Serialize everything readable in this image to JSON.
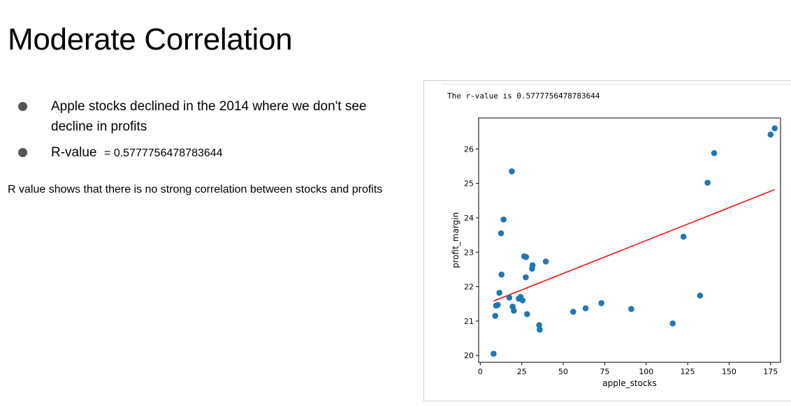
{
  "slide": {
    "title": "Moderate Correlation",
    "bullets": [
      {
        "text": "Apple stocks declined in the 2014 where we don't see decline in profits"
      },
      {
        "label": "R-value",
        "value": "= 0.5777756478783644"
      }
    ],
    "note": "R value shows that there is no strong correlation between stocks and profits"
  },
  "output": {
    "r_text": "The r-value is 0.5777756478783644"
  },
  "chart_data": {
    "type": "scatter",
    "xlabel": "apple_stocks",
    "ylabel": "profit_margin",
    "xlim": [
      -1,
      181
    ],
    "ylim": [
      19.8,
      26.9
    ],
    "xticks": [
      0,
      25,
      50,
      75,
      100,
      125,
      150,
      175
    ],
    "yticks": [
      20,
      21,
      22,
      23,
      24,
      25,
      26
    ],
    "point_color": "#1f77b4",
    "line_color": "#ff0000",
    "points": [
      [
        8,
        20.05
      ],
      [
        9,
        21.15
      ],
      [
        9.5,
        21.45
      ],
      [
        10.5,
        21.47
      ],
      [
        11.5,
        21.82
      ],
      [
        12.5,
        23.55
      ],
      [
        12.8,
        22.35
      ],
      [
        14,
        23.95
      ],
      [
        17.5,
        21.68
      ],
      [
        19,
        25.35
      ],
      [
        19.5,
        21.42
      ],
      [
        20.2,
        21.3
      ],
      [
        23.2,
        21.65
      ],
      [
        24.3,
        21.7
      ],
      [
        25.5,
        21.6
      ],
      [
        26.5,
        22.88
      ],
      [
        27.4,
        22.27
      ],
      [
        27.6,
        22.86
      ],
      [
        28.2,
        21.2
      ],
      [
        31.2,
        22.52
      ],
      [
        31.5,
        22.62
      ],
      [
        35.5,
        20.88
      ],
      [
        35.8,
        20.75
      ],
      [
        39.5,
        22.73
      ],
      [
        56,
        21.27
      ],
      [
        63.5,
        21.37
      ],
      [
        73,
        21.52
      ],
      [
        91,
        21.35
      ],
      [
        116,
        20.93
      ],
      [
        122.5,
        23.45
      ],
      [
        132.5,
        21.74
      ],
      [
        137,
        25.02
      ],
      [
        141,
        25.88
      ],
      [
        175,
        26.42
      ],
      [
        177.5,
        26.6
      ]
    ],
    "regression": {
      "x": [
        8,
        177.5
      ],
      "y": [
        21.58,
        24.82
      ]
    }
  }
}
